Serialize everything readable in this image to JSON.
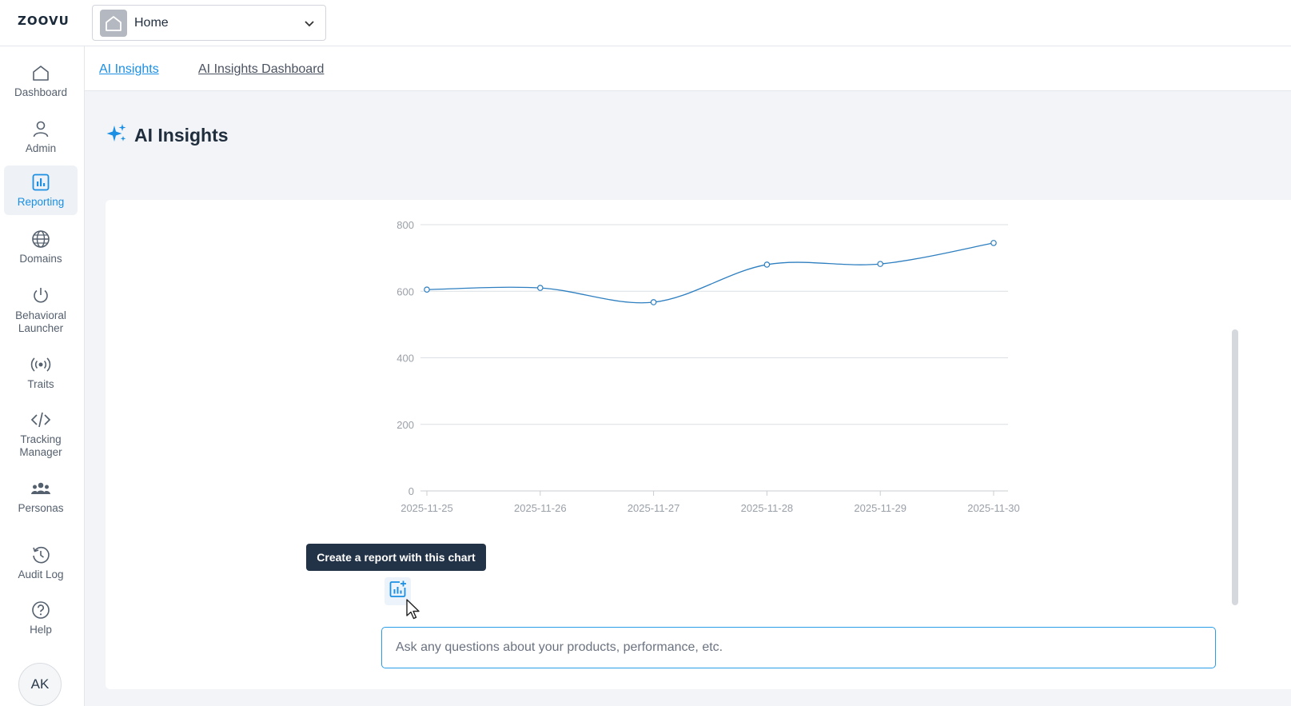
{
  "app": {
    "logo": "ZOOVU"
  },
  "workspace": {
    "name": "Home",
    "icon": "home-icon"
  },
  "sidebar": {
    "items": [
      {
        "label": "Dashboard",
        "icon": "home-icon",
        "active": false
      },
      {
        "label": "Admin",
        "icon": "user-icon",
        "active": false
      },
      {
        "label": "Reporting",
        "icon": "bar-chart-icon",
        "active": true
      },
      {
        "label": "Domains",
        "icon": "globe-icon",
        "active": false
      },
      {
        "label": "Behavioral Launcher",
        "icon": "power-icon",
        "active": false
      },
      {
        "label": "Traits",
        "icon": "broadcast-icon",
        "active": false
      },
      {
        "label": "Tracking Manager",
        "icon": "code-icon",
        "active": false
      },
      {
        "label": "Personas",
        "icon": "people-icon",
        "active": false
      },
      {
        "label": "Audit Log",
        "icon": "history-icon",
        "active": false
      },
      {
        "label": "Help",
        "icon": "help-icon",
        "active": false
      }
    ],
    "avatar": "AK"
  },
  "tabs": [
    {
      "label": "AI Insights",
      "active": true
    },
    {
      "label": "AI Insights Dashboard",
      "active": false
    }
  ],
  "page": {
    "title": "AI Insights",
    "icon": "sparkle-icon"
  },
  "chart": {
    "tooltip": "Create a report with this chart",
    "report_button_icon": "chart-plus-icon"
  },
  "chat": {
    "placeholder": "Ask any questions about your products, performance, etc."
  },
  "colors": {
    "accent": "#1a8fe3",
    "line": "#2e7fc0",
    "tooltip_bg": "#233347"
  },
  "chart_data": {
    "type": "line",
    "categories": [
      "2025-11-25",
      "2025-11-26",
      "2025-11-27",
      "2025-11-28",
      "2025-11-29",
      "2025-11-30"
    ],
    "values": [
      605,
      610,
      567,
      680,
      682,
      745
    ],
    "title": "",
    "xlabel": "",
    "ylabel": "",
    "ylim": [
      0,
      800
    ],
    "yticks": [
      0,
      200,
      400,
      600,
      800
    ],
    "grid": true,
    "legend": "none"
  }
}
